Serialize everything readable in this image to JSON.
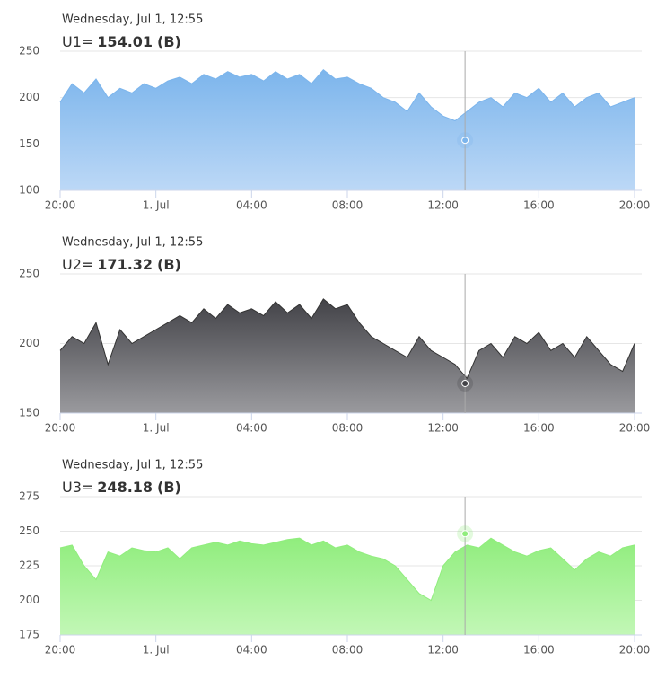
{
  "chart_data": [
    {
      "type": "area",
      "tooltip": {
        "header": "Wednesday, Jul 1, 12:55",
        "label": "U1=",
        "value": 154.01,
        "unit": "(B)",
        "x": 16.917
      },
      "x": [
        0,
        0.5,
        1,
        1.5,
        2,
        2.5,
        3,
        3.5,
        4,
        4.5,
        5,
        5.5,
        6,
        6.5,
        7,
        7.5,
        8,
        8.5,
        9,
        9.5,
        10,
        10.5,
        11,
        11.5,
        12,
        12.5,
        13,
        13.5,
        14,
        14.5,
        15,
        15.5,
        16,
        16.5,
        17,
        17.5,
        18,
        18.5,
        19,
        19.5,
        20,
        20.5,
        21,
        21.5,
        22,
        22.5,
        23,
        23.5,
        24
      ],
      "series": [
        {
          "color": "#7cb5ec",
          "fill_bottom": "#bcd8f6",
          "values": [
            195,
            215,
            205,
            220,
            200,
            210,
            205,
            215,
            210,
            218,
            222,
            215,
            225,
            220,
            228,
            222,
            225,
            218,
            228,
            220,
            225,
            215,
            230,
            220,
            222,
            215,
            210,
            200,
            195,
            185,
            205,
            190,
            180,
            175,
            185,
            195,
            200,
            190,
            205,
            200,
            210,
            195,
            205,
            190,
            200,
            205,
            190,
            195,
            200
          ]
        }
      ],
      "ylim": [
        100,
        250
      ],
      "yticks": [
        100,
        150,
        200,
        250
      ],
      "xlim": [
        0,
        24.3
      ],
      "xticks": [
        {
          "value": 0,
          "label": "20:00"
        },
        {
          "value": 4,
          "label": "1. Jul"
        },
        {
          "value": 8,
          "label": "04:00"
        },
        {
          "value": 12,
          "label": "08:00"
        },
        {
          "value": 16,
          "label": "12:00"
        },
        {
          "value": 20,
          "label": "16:00"
        },
        {
          "value": 24,
          "label": "20:00"
        }
      ],
      "grid": true
    },
    {
      "type": "area",
      "tooltip": {
        "header": "Wednesday, Jul 1, 12:55",
        "label": "U2=",
        "value": 171.32,
        "unit": "(B)",
        "x": 16.917
      },
      "x": [
        0,
        0.5,
        1,
        1.5,
        2,
        2.5,
        3,
        3.5,
        4,
        4.5,
        5,
        5.5,
        6,
        6.5,
        7,
        7.5,
        8,
        8.5,
        9,
        9.5,
        10,
        10.5,
        11,
        11.5,
        12,
        12.5,
        13,
        13.5,
        14,
        14.5,
        15,
        15.5,
        16,
        16.5,
        17,
        17.5,
        18,
        18.5,
        19,
        19.5,
        20,
        20.5,
        21,
        21.5,
        22,
        22.5,
        23,
        23.5,
        24
      ],
      "series": [
        {
          "color": "#333333",
          "fill_top": "#434348",
          "fill_bottom": "#9a9a9e",
          "values": [
            195,
            205,
            200,
            215,
            185,
            210,
            200,
            205,
            210,
            215,
            220,
            215,
            225,
            218,
            228,
            222,
            225,
            220,
            230,
            222,
            228,
            218,
            232,
            225,
            228,
            215,
            205,
            200,
            195,
            190,
            205,
            195,
            190,
            185,
            175,
            195,
            200,
            190,
            205,
            200,
            208,
            195,
            200,
            190,
            205,
            195,
            185,
            180,
            200
          ]
        }
      ],
      "ylim": [
        150,
        250
      ],
      "yticks": [
        150,
        200,
        250
      ],
      "xlim": [
        0,
        24.3
      ],
      "xticks": [
        {
          "value": 0,
          "label": "20:00"
        },
        {
          "value": 4,
          "label": "1. Jul"
        },
        {
          "value": 8,
          "label": "04:00"
        },
        {
          "value": 12,
          "label": "08:00"
        },
        {
          "value": 16,
          "label": "12:00"
        },
        {
          "value": 20,
          "label": "16:00"
        },
        {
          "value": 24,
          "label": "20:00"
        }
      ],
      "grid": true
    },
    {
      "type": "area",
      "tooltip": {
        "header": "Wednesday, Jul 1, 12:55",
        "label": "U3=",
        "value": 248.18,
        "unit": "(B)",
        "x": 16.917
      },
      "x": [
        0,
        0.5,
        1,
        1.5,
        2,
        2.5,
        3,
        3.5,
        4,
        4.5,
        5,
        5.5,
        6,
        6.5,
        7,
        7.5,
        8,
        8.5,
        9,
        9.5,
        10,
        10.5,
        11,
        11.5,
        12,
        12.5,
        13,
        13.5,
        14,
        14.5,
        15,
        15.5,
        16,
        16.5,
        17,
        17.5,
        18,
        18.5,
        19,
        19.5,
        20,
        20.5,
        21,
        21.5,
        22,
        22.5,
        23,
        23.5,
        24
      ],
      "series": [
        {
          "color": "#90ed7d",
          "fill_bottom": "#c2f7b6",
          "values": [
            238,
            240,
            225,
            215,
            235,
            232,
            238,
            236,
            235,
            238,
            230,
            238,
            240,
            242,
            240,
            243,
            241,
            240,
            242,
            244,
            245,
            240,
            243,
            238,
            240,
            235,
            232,
            230,
            225,
            215,
            205,
            200,
            225,
            235,
            240,
            238,
            245,
            240,
            235,
            232,
            236,
            238,
            230,
            222,
            230,
            235,
            232,
            238,
            240
          ]
        }
      ],
      "ylim": [
        175,
        275
      ],
      "yticks": [
        175,
        200,
        225,
        250,
        275
      ],
      "xlim": [
        0,
        24.3
      ],
      "xticks": [
        {
          "value": 0,
          "label": "20:00"
        },
        {
          "value": 4,
          "label": "1. Jul"
        },
        {
          "value": 8,
          "label": "04:00"
        },
        {
          "value": 12,
          "label": "08:00"
        },
        {
          "value": 16,
          "label": "12:00"
        },
        {
          "value": 20,
          "label": "16:00"
        },
        {
          "value": 24,
          "label": "20:00"
        }
      ],
      "grid": true
    }
  ]
}
